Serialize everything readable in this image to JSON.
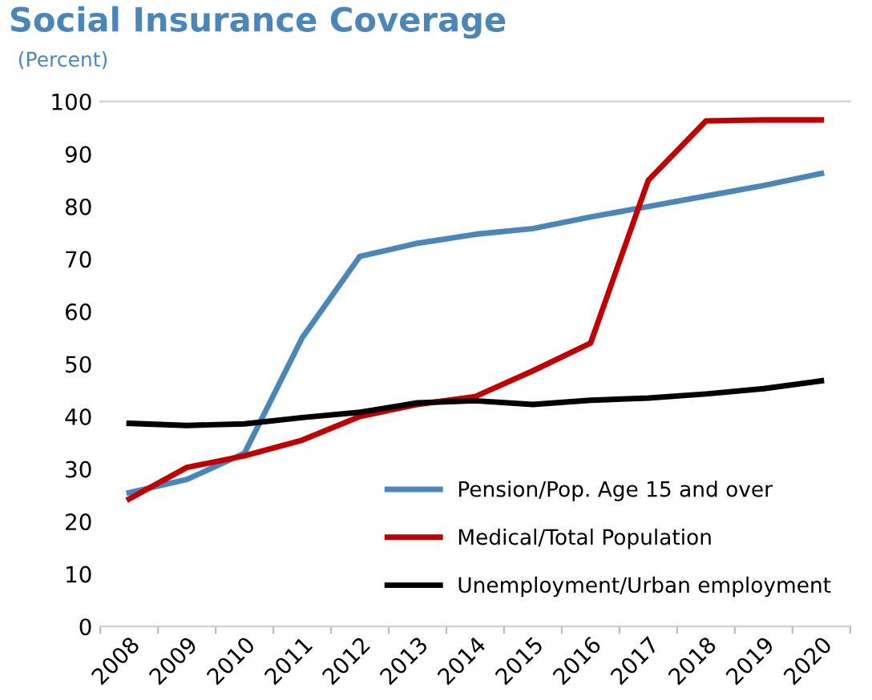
{
  "chart_data": {
    "type": "line",
    "title": "Social Insurance Coverage",
    "subtitle": "(Percent)",
    "categories": [
      "2008",
      "2009",
      "2010",
      "2011",
      "2012",
      "2013",
      "2014",
      "2015",
      "2016",
      "2017",
      "2018",
      "2019",
      "2020"
    ],
    "series": [
      {
        "name": "Pension/Pop. Age 15 and over",
        "color": "#4a86b8",
        "values": [
          25.5,
          28,
          33,
          55,
          70.5,
          73,
          74.7,
          75.8,
          78,
          80,
          82,
          84,
          86.3
        ]
      },
      {
        "name": "Medical/Total Population",
        "color": "#c00000",
        "values": [
          24.3,
          30.3,
          32.5,
          35.5,
          40,
          42.3,
          43.8,
          48.7,
          54,
          85,
          96.3,
          96.5,
          96.5
        ]
      },
      {
        "name": "Unemployment/Urban employment",
        "color": "#000000",
        "values": [
          38.7,
          38.3,
          38.6,
          39.8,
          40.8,
          42.6,
          43,
          42.3,
          43.1,
          43.5,
          44.3,
          45.3,
          46.8
        ]
      }
    ],
    "ylim": [
      0,
      100
    ],
    "yticks": [
      0,
      10,
      20,
      30,
      40,
      50,
      60,
      70,
      80,
      90,
      100
    ],
    "grid": false,
    "legend": "bottom right",
    "marker": "none",
    "line_style": "solid"
  }
}
